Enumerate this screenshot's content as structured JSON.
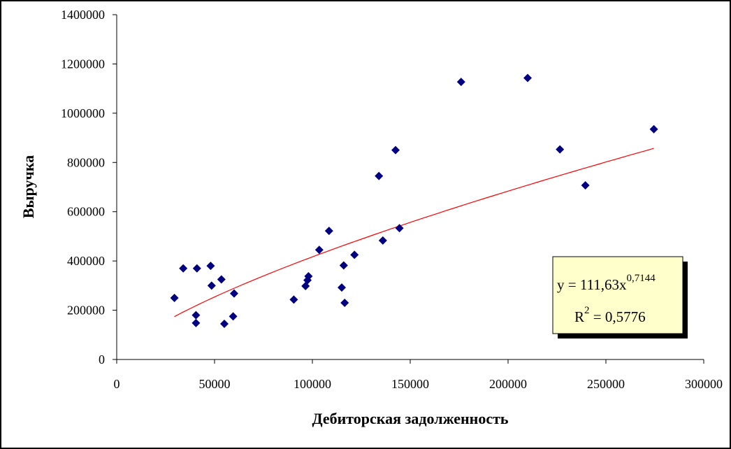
{
  "chart_data": {
    "type": "scatter",
    "xlabel": "Дебиторская задолженность",
    "ylabel": "Выручка",
    "xlim": [
      0,
      300000
    ],
    "ylim": [
      0,
      1400000
    ],
    "x_ticks": [
      0,
      50000,
      100000,
      150000,
      200000,
      250000,
      300000
    ],
    "y_ticks": [
      0,
      200000,
      400000,
      600000,
      800000,
      1000000,
      1200000,
      1400000
    ],
    "x_tick_labels": [
      "0",
      "50000",
      "100000",
      "150000",
      "200000",
      "250000",
      "300000"
    ],
    "y_tick_labels": [
      "0",
      "200000",
      "400000",
      "600000",
      "800000",
      "1000000",
      "1200000",
      "1400000"
    ],
    "grid": false,
    "marker_color": "#000080",
    "trend_color": "#ff0000",
    "points": [
      {
        "x": 29500,
        "y": 250000
      },
      {
        "x": 34000,
        "y": 370000
      },
      {
        "x": 40500,
        "y": 180000
      },
      {
        "x": 40500,
        "y": 148000
      },
      {
        "x": 41000,
        "y": 370000
      },
      {
        "x": 48000,
        "y": 380000
      },
      {
        "x": 48500,
        "y": 300000
      },
      {
        "x": 53500,
        "y": 325000
      },
      {
        "x": 55000,
        "y": 145000
      },
      {
        "x": 59500,
        "y": 175000
      },
      {
        "x": 60000,
        "y": 268000
      },
      {
        "x": 90500,
        "y": 243000
      },
      {
        "x": 96500,
        "y": 298000
      },
      {
        "x": 97500,
        "y": 322000
      },
      {
        "x": 98000,
        "y": 338000
      },
      {
        "x": 103500,
        "y": 445000
      },
      {
        "x": 108500,
        "y": 522000
      },
      {
        "x": 115000,
        "y": 292000
      },
      {
        "x": 116000,
        "y": 382000
      },
      {
        "x": 116500,
        "y": 230000
      },
      {
        "x": 121500,
        "y": 425000
      },
      {
        "x": 134000,
        "y": 745000
      },
      {
        "x": 136000,
        "y": 483000
      },
      {
        "x": 142500,
        "y": 850000
      },
      {
        "x": 144500,
        "y": 533000
      },
      {
        "x": 176000,
        "y": 1127000
      },
      {
        "x": 210000,
        "y": 1143000
      },
      {
        "x": 226500,
        "y": 853000
      },
      {
        "x": 239500,
        "y": 707000
      },
      {
        "x": 274500,
        "y": 935000
      }
    ],
    "trendline": {
      "type": "power",
      "a": 111.63,
      "b": 0.7144,
      "x_range": [
        29500,
        274500
      ],
      "equation_prefix": "y = 111,63x",
      "equation_exponent": "0,7144",
      "r2_prefix": "R",
      "r2_exponent": "2",
      "r2_suffix": " = 0,5776"
    },
    "annotation_box_fill": "#ffffcc"
  }
}
